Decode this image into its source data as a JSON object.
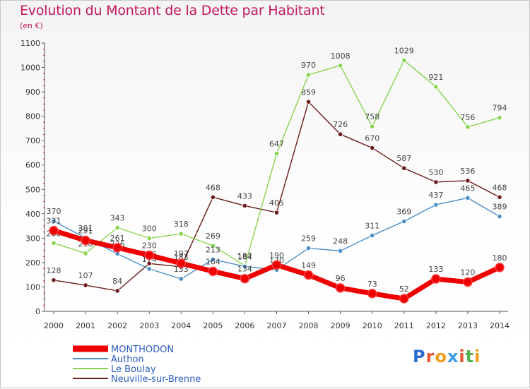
{
  "title": "Evolution du Montant de la Dette par Habitant",
  "unit": "(en €)",
  "logo": {
    "letters": [
      "P",
      "r",
      "o",
      "x",
      "i",
      "t",
      "i"
    ],
    "colors": [
      "#2a6bd1",
      "#e8552f",
      "#f2a01e",
      "#3b9be8",
      "#e8552f",
      "#54b04a",
      "#f2a01e"
    ]
  },
  "chart_data": {
    "type": "line",
    "x": [
      "2000",
      "2001",
      "2002",
      "2003",
      "2004",
      "2005",
      "2006",
      "2007",
      "2008",
      "2009",
      "2010",
      "2011",
      "2012",
      "2013",
      "2014"
    ],
    "ylim": [
      0,
      1100
    ],
    "yticks": [
      0,
      100,
      200,
      300,
      400,
      500,
      600,
      700,
      800,
      900,
      1000,
      1100
    ],
    "legend_position": "bottom-left",
    "series": [
      {
        "name": "Neuville-sur-Brenne",
        "color": "#6b1a1a",
        "values": [
          128,
          107,
          84,
          196,
          183,
          468,
          433,
          405,
          859,
          726,
          670,
          587,
          530,
          536,
          468
        ],
        "labels": [
          "128",
          "107",
          "84",
          "196",
          "183",
          "468",
          "433",
          "405",
          "859",
          "726",
          "670",
          "587",
          "530",
          "536",
          "468"
        ]
      },
      {
        "name": "Le Boulay",
        "color": "#88d44e",
        "values": [
          280,
          238,
          343,
          300,
          318,
          269,
          187,
          647,
          970,
          1008,
          758,
          1029,
          921,
          756,
          794
        ],
        "labels": [
          "280",
          "238",
          "343",
          "300",
          "318",
          "269",
          "187",
          "647",
          "970",
          "1008",
          "758",
          "1029",
          "921",
          "756",
          "794"
        ]
      },
      {
        "name": "Authon",
        "color": "#4a8ec8",
        "values": [
          370,
          301,
          236,
          174,
          133,
          213,
          184,
          170,
          259,
          248,
          311,
          369,
          437,
          465,
          389
        ],
        "labels": [
          "370",
          "301",
          "236",
          "174",
          "133",
          "213",
          "184",
          "170",
          "259",
          "248",
          "311",
          "369",
          "437",
          "465",
          "389"
        ]
      },
      {
        "name": "MONTHODON",
        "color": "#ee0000",
        "values": [
          331,
          291,
          261,
          230,
          197,
          164,
          134,
          190,
          149,
          96,
          73,
          52,
          133,
          120,
          180
        ],
        "labels": [
          "331",
          "291",
          "261",
          "230",
          "197",
          "164",
          "134",
          "190",
          "149",
          "96",
          "73",
          "52",
          "133",
          "120",
          "180"
        ]
      }
    ]
  }
}
